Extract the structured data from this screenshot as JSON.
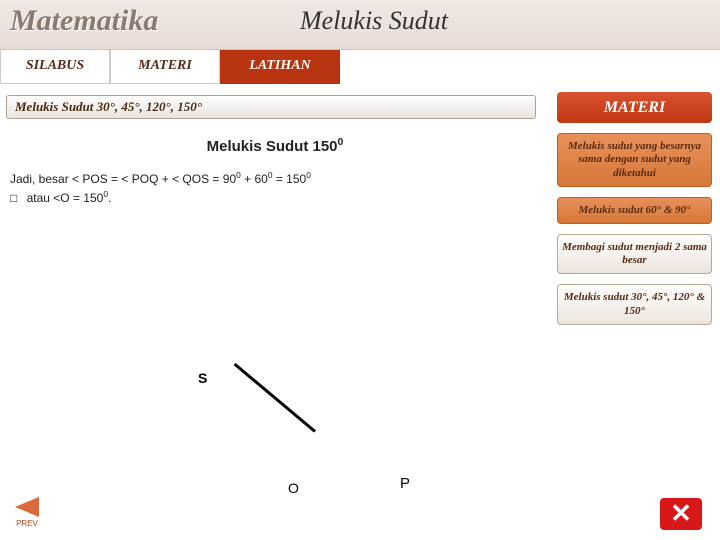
{
  "header": {
    "logo": "Matematika",
    "title": "Melukis Sudut"
  },
  "nav": {
    "silabus": "SILABUS",
    "materi": "MATERI",
    "latihan": "LATIHAN"
  },
  "crumb": "Melukis Sudut 30°, 45°, 120°, 150°",
  "sidebar": {
    "materi": "MATERI",
    "item1": "Melukis sudut yang besarnya sama dengan sudut yang diketahui",
    "item2": "Melukis sudut 60° & 90°",
    "item3": "Membagi sudut menjadi 2 sama besar",
    "item4": "Melukis sudut 30°, 45°, 120° & 150°"
  },
  "content": {
    "heading_text": "Melukis Sudut 150",
    "heading_sup": "0",
    "line1_pre": "Jadi, besar  < POS = < POQ +  < QOS = 90",
    "line1_mid": " + 60",
    "line1_post": " = 150",
    "sup0": "0",
    "line2": "atau  <O = 150",
    "bullet": "□"
  },
  "diagram": {
    "s": "S",
    "o": "O",
    "p": "P"
  },
  "prev": "PREV",
  "close": "✕"
}
